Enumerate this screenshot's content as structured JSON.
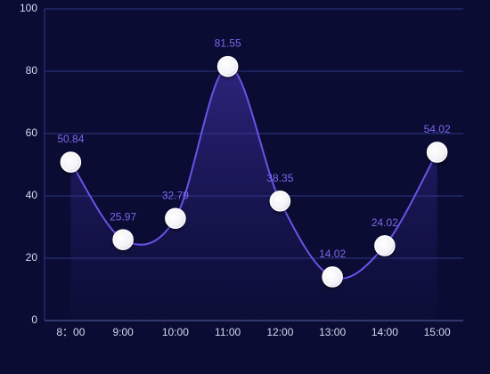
{
  "chart_data": {
    "type": "line",
    "categories": [
      "8：00",
      "9:00",
      "10:00",
      "11:00",
      "12:00",
      "13:00",
      "14:00",
      "15:00"
    ],
    "series": [
      {
        "values": [
          50.84,
          25.97,
          32.79,
          81.55,
          38.35,
          14.02,
          24.02,
          54.02
        ],
        "color": "#6b52e6"
      }
    ],
    "ylim": [
      0,
      100
    ],
    "yticks": [
      0,
      20,
      40,
      60,
      80,
      100
    ],
    "grid": true,
    "smooth": true,
    "area": true,
    "label_color": "#7b68ee"
  }
}
